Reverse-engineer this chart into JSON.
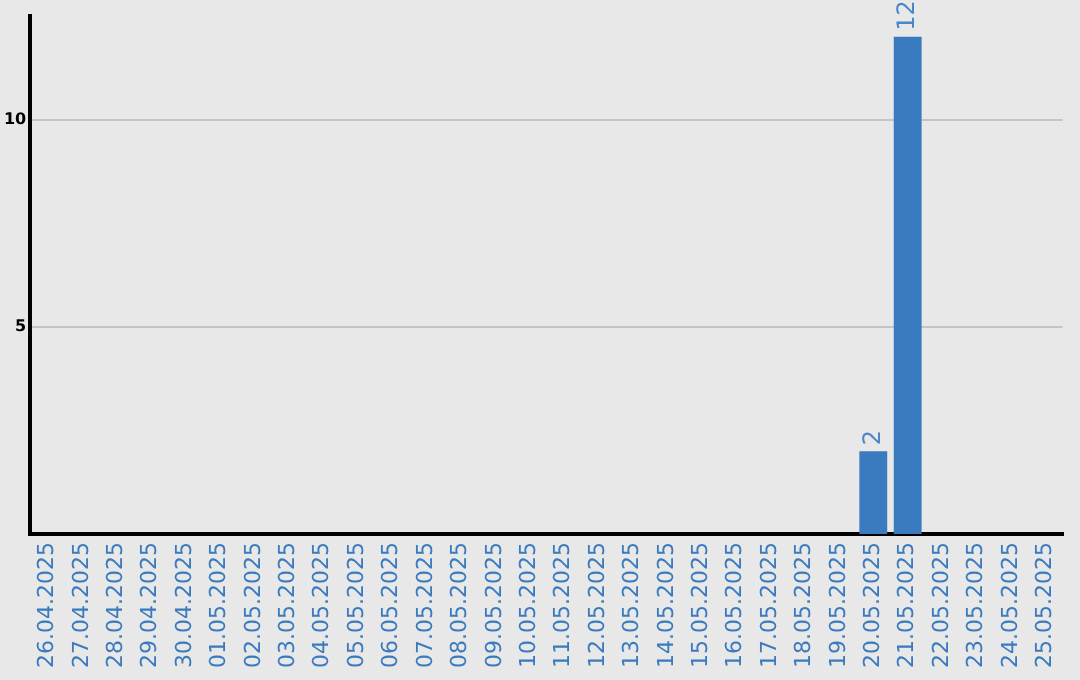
{
  "chart_data": {
    "type": "bar",
    "categories": [
      "26.04.2025",
      "27.04.2025",
      "28.04.2025",
      "29.04.2025",
      "30.04.2025",
      "01.05.2025",
      "02.05.2025",
      "03.05.2025",
      "04.05.2025",
      "05.05.2025",
      "06.05.2025",
      "07.05.2025",
      "08.05.2025",
      "09.05.2025",
      "10.05.2025",
      "11.05.2025",
      "12.05.2025",
      "13.05.2025",
      "14.05.2025",
      "15.05.2025",
      "16.05.2025",
      "17.05.2025",
      "18.05.2025",
      "19.05.2025",
      "20.05.2025",
      "21.05.2025",
      "22.05.2025",
      "23.05.2025",
      "24.05.2025",
      "25.05.2025"
    ],
    "values": [
      0,
      0,
      0,
      0,
      0,
      0,
      0,
      0,
      0,
      0,
      0,
      0,
      0,
      0,
      0,
      0,
      0,
      0,
      0,
      0,
      0,
      0,
      0,
      0,
      2,
      12,
      0,
      0,
      0,
      0
    ],
    "value_labels": [
      null,
      null,
      null,
      null,
      null,
      null,
      null,
      null,
      null,
      null,
      null,
      null,
      null,
      null,
      null,
      null,
      null,
      null,
      null,
      null,
      null,
      null,
      null,
      null,
      "2",
      "12",
      null,
      null,
      null,
      null
    ],
    "color": "#3a7bbf",
    "ylim": [
      0,
      12.5
    ],
    "yticks": [
      5,
      10
    ],
    "grid": "y",
    "legend": false
  }
}
